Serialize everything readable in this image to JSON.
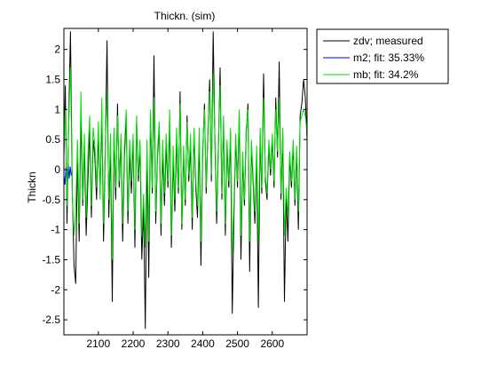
{
  "chart_data": {
    "type": "line",
    "title": "Thickn. (sim)",
    "xlabel": "",
    "ylabel": "Thickn",
    "xlim": [
      2001,
      2700
    ],
    "ylim": [
      -2.75,
      2.35
    ],
    "xticks": [
      2100,
      2200,
      2300,
      2400,
      2500,
      2600
    ],
    "yticks": [
      -2.5,
      -2,
      -1.5,
      -1,
      -0.5,
      0,
      0.5,
      1,
      1.5,
      2
    ],
    "ytick_labels": [
      "-2.5",
      "-2",
      "-1.5",
      "-1",
      "-0.5",
      "0",
      "0.5",
      "1",
      "1.5",
      "2"
    ],
    "grid": false,
    "legend": "outside-top-right",
    "series": [
      {
        "name": "zdv; measured",
        "color": "#000000",
        "x": [
          2001,
          2005,
          2010,
          2015,
          2020,
          2025,
          2030,
          2035,
          2040,
          2045,
          2050,
          2055,
          2060,
          2065,
          2070,
          2075,
          2080,
          2085,
          2090,
          2095,
          2100,
          2105,
          2110,
          2115,
          2120,
          2125,
          2130,
          2135,
          2140,
          2145,
          2150,
          2155,
          2160,
          2165,
          2170,
          2175,
          2180,
          2185,
          2190,
          2195,
          2200,
          2205,
          2210,
          2215,
          2220,
          2225,
          2230,
          2235,
          2240,
          2245,
          2250,
          2255,
          2260,
          2265,
          2270,
          2275,
          2280,
          2285,
          2290,
          2295,
          2300,
          2305,
          2310,
          2315,
          2320,
          2325,
          2330,
          2335,
          2340,
          2345,
          2350,
          2355,
          2360,
          2365,
          2370,
          2375,
          2380,
          2385,
          2390,
          2395,
          2400,
          2405,
          2410,
          2415,
          2420,
          2425,
          2430,
          2435,
          2440,
          2445,
          2450,
          2455,
          2460,
          2465,
          2470,
          2475,
          2480,
          2485,
          2490,
          2495,
          2500,
          2505,
          2510,
          2515,
          2520,
          2525,
          2530,
          2535,
          2540,
          2545,
          2550,
          2555,
          2560,
          2565,
          2570,
          2575,
          2580,
          2585,
          2590,
          2595,
          2600,
          2605,
          2610,
          2615,
          2620,
          2625,
          2630,
          2635,
          2640,
          2645,
          2650,
          2655,
          2660,
          2665,
          2670,
          2675,
          2680,
          2685,
          2690,
          2695,
          2700
        ],
        "y": [
          0.2,
          1.4,
          -0.9,
          0.9,
          2.3,
          -0.3,
          -1.6,
          -1.9,
          0.3,
          -1.2,
          0.9,
          -0.6,
          0.4,
          -1.1,
          -0.2,
          0.7,
          -0.8,
          0.5,
          0.2,
          -0.5,
          0.6,
          -0.4,
          1.0,
          -1.2,
          0.3,
          2.15,
          -0.8,
          0.4,
          -2.2,
          0.6,
          -0.5,
          1.1,
          -0.3,
          0.5,
          -1.2,
          0.2,
          0.9,
          -0.9,
          0.3,
          -0.4,
          0.5,
          -1.3,
          0.8,
          -0.2,
          0.4,
          -1.5,
          -0.6,
          -2.65,
          0.3,
          -1.8,
          0.9,
          -0.4,
          1.9,
          -0.9,
          0.2,
          0.7,
          -1.1,
          0.3,
          -0.6,
          0.4,
          -0.3,
          0.8,
          -1.3,
          0.2,
          -0.7,
          0.5,
          -0.4,
          1.3,
          -1.0,
          0.3,
          -0.6,
          0.9,
          -0.2,
          0.4,
          -1.0,
          0.6,
          -0.3,
          -0.8,
          0.5,
          -1.6,
          0.3,
          1.1,
          -0.4,
          0.6,
          1.5,
          -0.2,
          2.3,
          0.5,
          -0.9,
          0.3,
          1.7,
          -0.5,
          0.8,
          -1.1,
          0.4,
          -0.3,
          0.6,
          -2.4,
          -0.7,
          0.5,
          -0.3,
          0.9,
          -1.5,
          0.2,
          -0.6,
          0.6,
          1.1,
          -1.7,
          0.4,
          -0.2,
          -0.9,
          0.3,
          -2.3,
          0.6,
          -0.4,
          1.6,
          -0.2,
          -0.5,
          0.4,
          -0.1,
          0.5,
          -0.3,
          1.2,
          0.2,
          1.8,
          -0.5,
          0.6,
          -2.2,
          -0.4,
          -1.2,
          0.2,
          -0.3,
          0.4,
          -0.6,
          0.3,
          -1.0,
          0.9,
          1.1,
          1.5,
          1.2,
          0.5
        ],
        "visible_range": "2001-2700"
      },
      {
        "name": "m2; fit: 35.33%",
        "color": "#0000ff",
        "x": [
          2001,
          2004,
          2007,
          2010,
          2013,
          2016,
          2019,
          2022,
          2025
        ],
        "y": [
          -0.1,
          -0.25,
          0.05,
          -0.2,
          0.1,
          -0.15,
          0.05,
          -0.1,
          0.0
        ]
      },
      {
        "name": "mb; fit: 34.2%",
        "color": "#00dd00",
        "x": [
          2001,
          2005,
          2010,
          2015,
          2020,
          2025,
          2030,
          2035,
          2040,
          2045,
          2050,
          2055,
          2060,
          2065,
          2070,
          2075,
          2080,
          2085,
          2090,
          2095,
          2100,
          2105,
          2110,
          2115,
          2120,
          2125,
          2130,
          2135,
          2140,
          2145,
          2150,
          2155,
          2160,
          2165,
          2170,
          2175,
          2180,
          2185,
          2190,
          2195,
          2200,
          2205,
          2210,
          2215,
          2220,
          2225,
          2230,
          2235,
          2240,
          2245,
          2250,
          2255,
          2260,
          2265,
          2270,
          2275,
          2280,
          2285,
          2290,
          2295,
          2300,
          2305,
          2310,
          2315,
          2320,
          2325,
          2330,
          2335,
          2340,
          2345,
          2350,
          2355,
          2360,
          2365,
          2370,
          2375,
          2380,
          2385,
          2390,
          2395,
          2400,
          2405,
          2410,
          2415,
          2420,
          2425,
          2430,
          2435,
          2440,
          2445,
          2450,
          2455,
          2460,
          2465,
          2470,
          2475,
          2480,
          2485,
          2490,
          2495,
          2500,
          2505,
          2510,
          2515,
          2520,
          2525,
          2530,
          2535,
          2540,
          2545,
          2550,
          2555,
          2560,
          2565,
          2570,
          2575,
          2580,
          2585,
          2590,
          2595,
          2600,
          2605,
          2610,
          2615,
          2620,
          2625,
          2630,
          2635,
          2640,
          2645,
          2650,
          2655,
          2660,
          2665,
          2670,
          2675,
          2680,
          2685,
          2690,
          2695,
          2700
        ],
        "y": [
          0.3,
          1.0,
          -0.6,
          0.8,
          1.7,
          -0.4,
          -1.1,
          -0.7,
          0.5,
          -0.9,
          1.3,
          -0.5,
          0.6,
          -0.8,
          0.2,
          0.9,
          -0.6,
          0.7,
          0.4,
          -0.3,
          0.8,
          -0.5,
          1.2,
          -0.9,
          0.4,
          1.3,
          -0.5,
          0.6,
          -1.5,
          0.7,
          -0.3,
          0.9,
          -0.2,
          0.6,
          -0.9,
          0.4,
          1.0,
          -0.7,
          0.5,
          -0.2,
          0.6,
          -1.0,
          0.9,
          -0.1,
          0.5,
          -1.1,
          -0.4,
          -1.3,
          0.5,
          -1.2,
          1.0,
          -0.3,
          1.2,
          -0.7,
          0.3,
          0.8,
          -0.9,
          0.5,
          -0.4,
          0.6,
          -0.2,
          1.0,
          -1.1,
          0.4,
          -0.5,
          0.7,
          -0.3,
          1.1,
          -0.9,
          0.4,
          -0.5,
          0.8,
          -0.1,
          0.6,
          -0.8,
          0.7,
          -0.2,
          -0.6,
          0.7,
          -1.2,
          0.4,
          1.0,
          -0.3,
          0.7,
          1.3,
          -0.1,
          1.6,
          0.6,
          -0.7,
          0.4,
          1.4,
          -0.4,
          0.9,
          -0.9,
          0.5,
          -0.2,
          0.7,
          -1.4,
          -0.5,
          0.6,
          -0.2,
          1.0,
          -1.1,
          0.3,
          -0.5,
          0.7,
          1.0,
          -1.2,
          0.5,
          -0.1,
          -0.7,
          0.4,
          -1.2,
          0.7,
          -0.3,
          1.2,
          -0.1,
          -0.4,
          0.5,
          0.0,
          0.6,
          -0.2,
          1.0,
          0.3,
          1.2,
          -0.4,
          0.7,
          -1.1,
          -0.3,
          -0.8,
          0.3,
          -0.2,
          0.5,
          -0.5,
          0.4,
          -0.7,
          0.8,
          0.9,
          1.0,
          0.9,
          0.6
        ]
      }
    ]
  }
}
